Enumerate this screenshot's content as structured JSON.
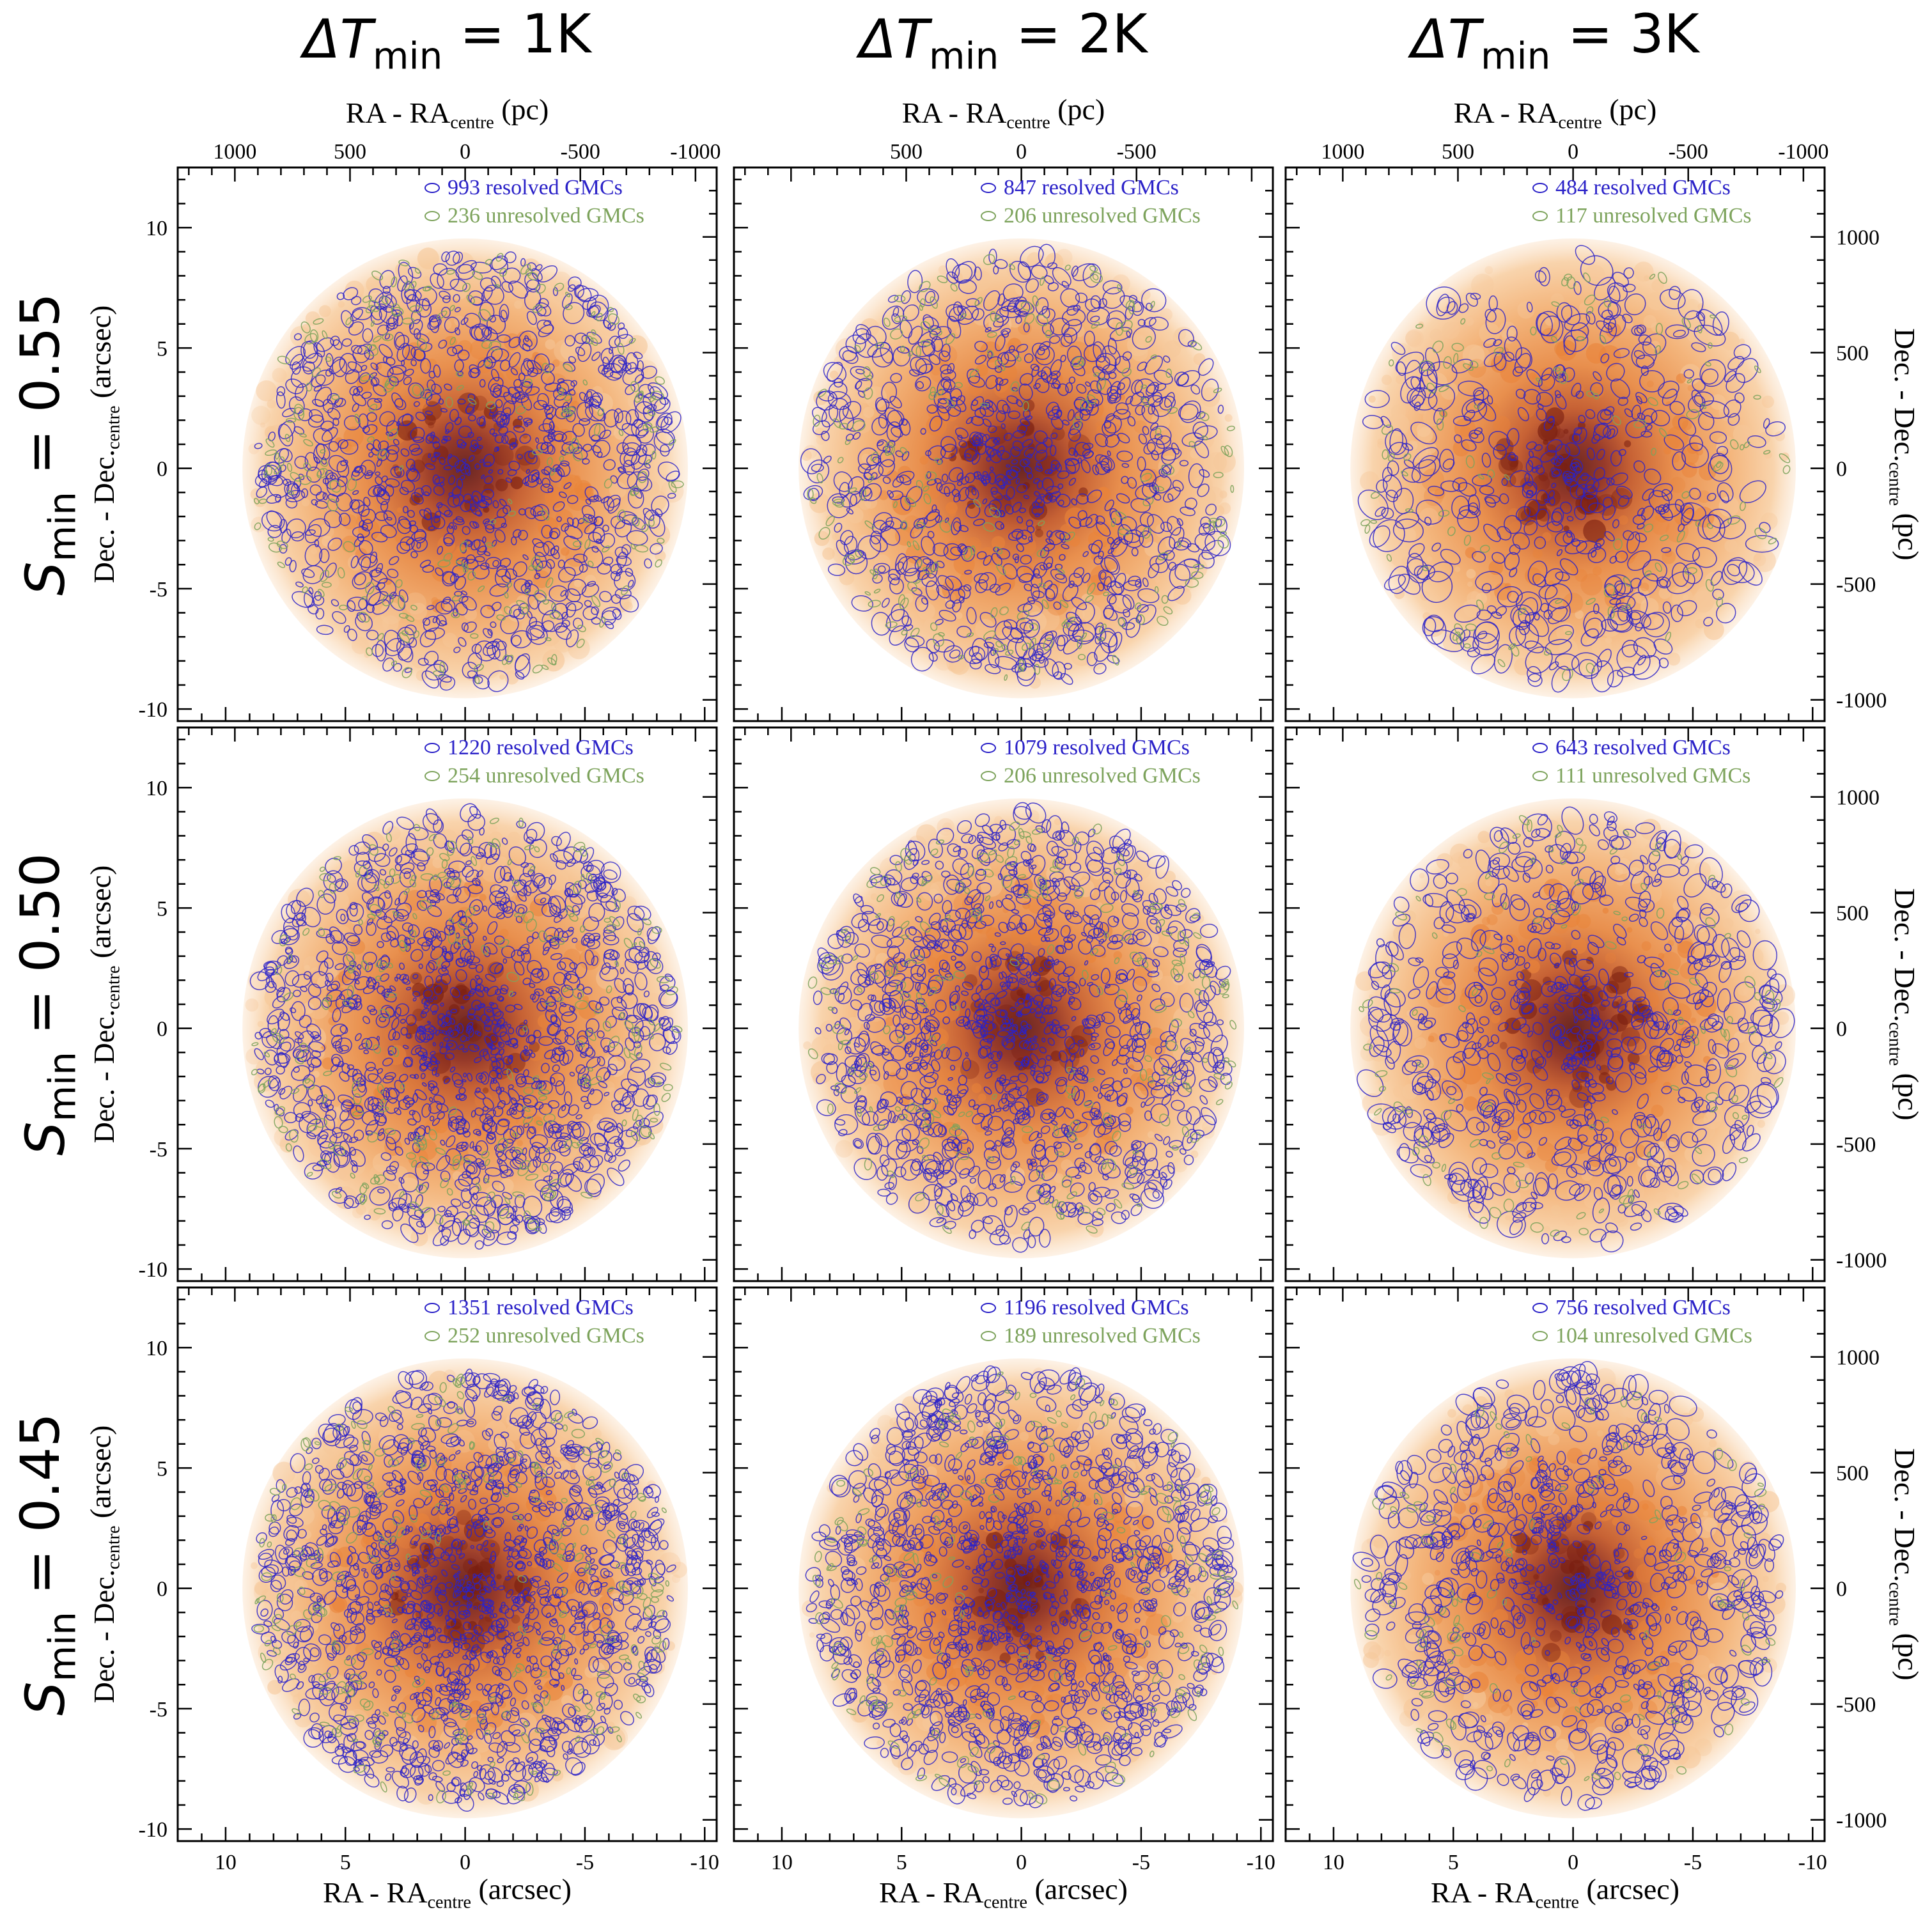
{
  "colors": {
    "resolved": "#2b22c8",
    "unresolved": "#7da35c",
    "map_light": "#f6c89a",
    "map_mid": "#e9843a",
    "map_dark": "#7a1e10"
  },
  "column_titles": [
    {
      "prefix": "ΔT",
      "sub": "min",
      "suffix": " = 1K"
    },
    {
      "prefix": "ΔT",
      "sub": "min",
      "suffix": " = 2K"
    },
    {
      "prefix": "ΔT",
      "sub": "min",
      "suffix": " = 3K"
    }
  ],
  "row_titles": [
    {
      "prefix": "S",
      "sub": "min",
      "suffix": " = 0.55"
    },
    {
      "prefix": "S",
      "sub": "min",
      "suffix": " = 0.50"
    },
    {
      "prefix": "S",
      "sub": "min",
      "suffix": " = 0.45"
    }
  ],
  "axes": {
    "bottom_label": {
      "main": "RA - RA",
      "sub": "centre",
      "unit": " (arcsec)"
    },
    "top_label": {
      "main": "RA - RA",
      "sub": "centre",
      "unit": " (pc)"
    },
    "left_label": {
      "main": "Dec. - Dec.",
      "sub": "centre",
      "unit": " (arcsec)"
    },
    "right_label": {
      "main": "Dec. - Dec.",
      "sub": "centre",
      "unit": " (pc)"
    },
    "bottom_ticks": [
      "10",
      "5",
      "0",
      "-5",
      "-10"
    ],
    "top_ticks": [
      "1000",
      "500",
      "0",
      "-500",
      "-1000"
    ],
    "top_ticks_inner": [
      "500",
      "0",
      "-500"
    ],
    "left_ticks": [
      "10",
      "5",
      "0",
      "-5",
      "-10"
    ],
    "right_ticks": [
      "1000",
      "500",
      "0",
      "-500",
      "-1000"
    ]
  },
  "chart_data": [
    {
      "type": "scatter",
      "row": 0,
      "col": 0,
      "x_range_arcsec": [
        12,
        -10.5
      ],
      "y_range_arcsec": [
        -10.5,
        12.5
      ],
      "resolved": 993,
      "unresolved": 236,
      "resolved_label": "993 resolved GMCs",
      "unresolved_label": "236 unresolved GMCs"
    },
    {
      "type": "scatter",
      "row": 0,
      "col": 1,
      "x_range_arcsec": [
        12,
        -10.5
      ],
      "y_range_arcsec": [
        -10.5,
        12.5
      ],
      "resolved": 847,
      "unresolved": 206,
      "resolved_label": "847 resolved GMCs",
      "unresolved_label": "206 unresolved GMCs"
    },
    {
      "type": "scatter",
      "row": 0,
      "col": 2,
      "x_range_arcsec": [
        12,
        -10.5
      ],
      "y_range_arcsec": [
        -10.5,
        12.5
      ],
      "resolved": 484,
      "unresolved": 117,
      "resolved_label": "484 resolved GMCs",
      "unresolved_label": "117 unresolved GMCs"
    },
    {
      "type": "scatter",
      "row": 1,
      "col": 0,
      "x_range_arcsec": [
        12,
        -10.5
      ],
      "y_range_arcsec": [
        -10.5,
        12.5
      ],
      "resolved": 1220,
      "unresolved": 254,
      "resolved_label": "1220 resolved GMCs",
      "unresolved_label": "254 unresolved GMCs"
    },
    {
      "type": "scatter",
      "row": 1,
      "col": 1,
      "x_range_arcsec": [
        12,
        -10.5
      ],
      "y_range_arcsec": [
        -10.5,
        12.5
      ],
      "resolved": 1079,
      "unresolved": 206,
      "resolved_label": "1079 resolved GMCs",
      "unresolved_label": "206 unresolved GMCs"
    },
    {
      "type": "scatter",
      "row": 1,
      "col": 2,
      "x_range_arcsec": [
        12,
        -10.5
      ],
      "y_range_arcsec": [
        -10.5,
        12.5
      ],
      "resolved": 643,
      "unresolved": 111,
      "resolved_label": "643 resolved GMCs",
      "unresolved_label": "111 unresolved GMCs"
    },
    {
      "type": "scatter",
      "row": 2,
      "col": 0,
      "x_range_arcsec": [
        12,
        -10.5
      ],
      "y_range_arcsec": [
        -10.5,
        12.5
      ],
      "resolved": 1351,
      "unresolved": 252,
      "resolved_label": "1351 resolved GMCs",
      "unresolved_label": "252 unresolved GMCs"
    },
    {
      "type": "scatter",
      "row": 2,
      "col": 1,
      "x_range_arcsec": [
        12,
        -10.5
      ],
      "y_range_arcsec": [
        -10.5,
        12.5
      ],
      "resolved": 1196,
      "unresolved": 189,
      "resolved_label": "1196 resolved GMCs",
      "unresolved_label": "189 unresolved GMCs"
    },
    {
      "type": "scatter",
      "row": 2,
      "col": 2,
      "x_range_arcsec": [
        12,
        -10.5
      ],
      "y_range_arcsec": [
        -10.5,
        12.5
      ],
      "resolved": 756,
      "unresolved": 104,
      "resolved_label": "756 resolved GMCs",
      "unresolved_label": "104 unresolved GMCs"
    }
  ]
}
